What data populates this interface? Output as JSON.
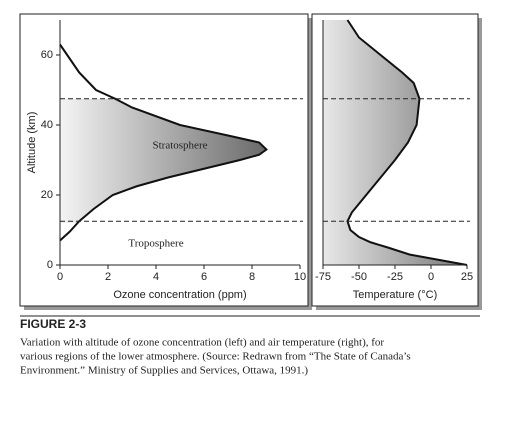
{
  "chart_data": [
    {
      "type": "line",
      "xlabel": "Ozone concentration (ppm)",
      "ylabel": "Altitude (km)",
      "x": [
        0,
        0.4,
        0.8,
        1.4,
        2.2,
        3.2,
        4.5,
        6,
        7.5,
        8.3,
        8.6,
        8.3,
        7,
        5,
        3,
        2.3,
        1.5,
        0.8,
        0.3,
        0
      ],
      "values": [
        7,
        9.5,
        12.5,
        16,
        20,
        22.5,
        25,
        27.5,
        30,
        31.5,
        33,
        35,
        37,
        40,
        45,
        47.5,
        50,
        55,
        60,
        63
      ],
      "color": "#111111",
      "xlim": [
        0,
        10
      ],
      "ylim": [
        0,
        70
      ],
      "xticks": [
        0,
        2,
        4,
        6,
        8,
        10
      ],
      "yticks": [
        0,
        20,
        40,
        60
      ],
      "reference_lines": [
        12.5,
        47.5
      ],
      "annotations": [
        {
          "text": "Stratosphere",
          "x": 5,
          "y": 34
        },
        {
          "text": "Troposphere",
          "x": 4,
          "y": 6
        }
      ]
    },
    {
      "type": "line",
      "xlabel": "Temperature (°C)",
      "x": [
        25,
        5,
        -15,
        -30,
        -42,
        -50,
        -56,
        -58,
        -55,
        -45,
        -35,
        -25,
        -16,
        -10,
        -8,
        -12,
        -20,
        -35,
        -50,
        -58
      ],
      "values": [
        0,
        1.5,
        3,
        5,
        6.5,
        8,
        10,
        12.5,
        15,
        20,
        25,
        30,
        35,
        40,
        47.5,
        52,
        55,
        60,
        65,
        70
      ],
      "color": "#111111",
      "xlim": [
        -75,
        25
      ],
      "ylim": [
        0,
        70
      ],
      "xticks": [
        -75,
        -50,
        -25,
        0,
        25
      ],
      "reference_lines": [
        12.5,
        47.5
      ]
    }
  ],
  "caption": {
    "label": "FIGURE 2-3",
    "lines": [
      "Variation with altitude of ozone concentration (left) and air temperature (right), for",
      "various regions of the lower atmosphere. (Source: Redrawn from “The State of Canada’s",
      "Environment.” Ministry of Supplies and Services, Ottawa, 1991.)"
    ]
  }
}
